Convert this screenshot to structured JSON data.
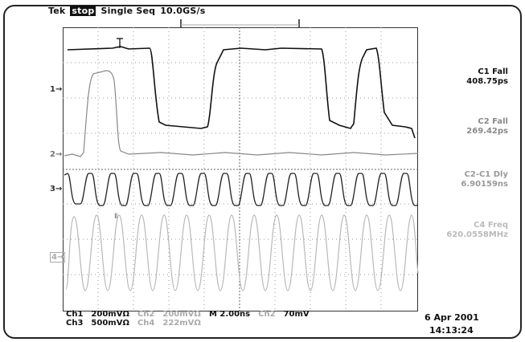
{
  "topbar": {
    "brand": "Tek",
    "state": "stop",
    "mode": "Single Seq",
    "rate": "10.0GS/s"
  },
  "channel_markers": {
    "c1": "1",
    "c2": "2",
    "c3": "3",
    "c4": "4"
  },
  "measurements": [
    {
      "title": "C1 Fall",
      "value": "408.75ps"
    },
    {
      "title": "C2 Fall",
      "value": "269.42ps"
    },
    {
      "title": "C2-C1 Dly",
      "value": "6.90159ns"
    },
    {
      "title": "C4 Freq",
      "value": "620.0558MHz"
    }
  ],
  "bottom": {
    "row1": [
      "Ch1",
      "200mVΩ",
      "Ch2",
      "200mVΩ",
      "M 2.00ns",
      "Ch2",
      "70mV"
    ],
    "row2": [
      "Ch3",
      "500mVΩ",
      "Ch4",
      "222mVΩ"
    ]
  },
  "datetime": {
    "date": "6 Apr 2001",
    "time": "14:13:24"
  },
  "colors": {
    "ch1": "#111111",
    "ch2": "#888888",
    "ch3": "#222222",
    "ch4": "#b5b5b5"
  }
}
